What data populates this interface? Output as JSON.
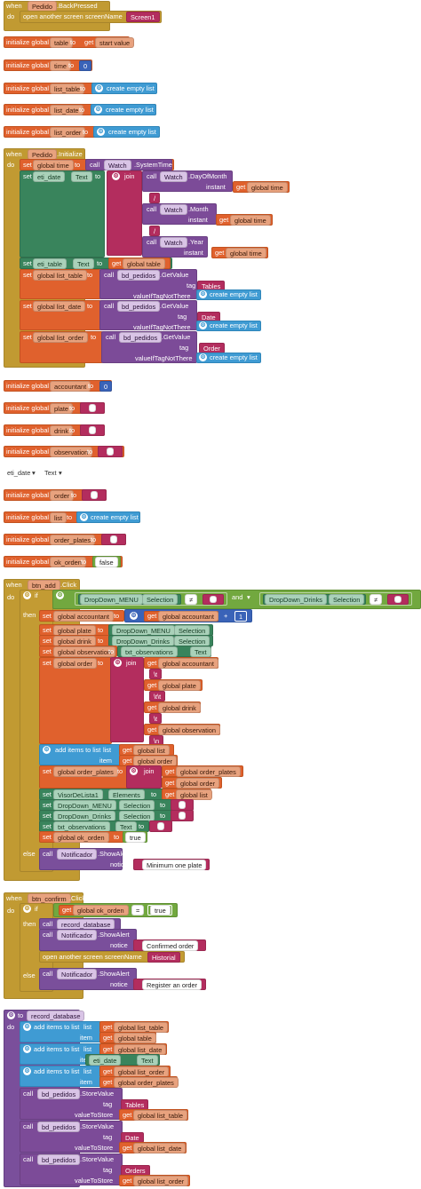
{
  "blocks": {
    "backpressed": {
      "when": "when",
      "component": "Pedido",
      "event": ".BackPressed",
      "do": "do",
      "action": "open another screen  screenName",
      "screen": "Screen1"
    },
    "init_table": {
      "label": "initialize global",
      "name": "table",
      "to": "to",
      "get": "get",
      "value": "start value"
    },
    "init_time": {
      "label": "initialize global",
      "name": "time",
      "to": "to",
      "value": "0"
    },
    "init_list_table": {
      "label": "initialize global",
      "name": "list_table",
      "to": "to",
      "value": "create empty list"
    },
    "init_list_date": {
      "label": "initialize global",
      "name": "list_date",
      "to": "to",
      "value": "create empty list"
    },
    "init_list_order": {
      "label": "initialize global",
      "name": "list_order",
      "to": "to",
      "value": "create empty list"
    },
    "initialize": {
      "when": "when",
      "component": "Pedido",
      "event": ".Initialize",
      "do": "do",
      "set": "set",
      "to": "to",
      "call": "call",
      "get": "get",
      "join": "join",
      "time_var": "global time",
      "watch": "Watch",
      "system_time": ".SystemTime",
      "eti_date": "eti_date",
      "text": "Text",
      "day": ".DayOfMonth",
      "month": ".Month",
      "year": ".Year",
      "instant": "instant",
      "slash": "/",
      "eti_table": "eti_table",
      "global_table": "global table",
      "list_table_var": "global list_table",
      "list_date_var": "global list_date",
      "list_order_var": "global list_order",
      "db": "bd_pedidos",
      "getvalue": ".GetValue",
      "tag": "tag",
      "if_not": "valueIfTagNotThere",
      "tag_tables": "Tables",
      "tag_date": "Date",
      "tag_order": "Order",
      "empty_list": "create empty list"
    },
    "init_accountant": {
      "label": "initialize global",
      "name": "accountant",
      "to": "to",
      "value": "0"
    },
    "init_plate": {
      "label": "initialize global",
      "name": "plate",
      "to": "to",
      "value": ""
    },
    "init_drink": {
      "label": "initialize global",
      "name": "drink",
      "to": "to",
      "value": ""
    },
    "init_observation": {
      "label": "initialize global",
      "name": "observation",
      "to": "to",
      "value": ""
    },
    "loose": {
      "component": "eti_date",
      "prop": "Text"
    },
    "init_order": {
      "label": "initialize global",
      "name": "order",
      "to": "to",
      "value": ""
    },
    "init_list": {
      "label": "initialize global",
      "name": "list",
      "to": "to",
      "value": "create empty list"
    },
    "init_order_plates": {
      "label": "initialize global",
      "name": "order_plates",
      "to": "to",
      "value": ""
    },
    "init_ok_orden": {
      "label": "initialize global",
      "name": "ok_orden",
      "to": "to",
      "value": "false"
    },
    "btn_add": {
      "when": "when",
      "component": "btn_add",
      "event": ".Click",
      "do": "do",
      "if": "if",
      "then": "then",
      "else": "else",
      "menu": "DropDown_MENU",
      "selection": "Selection",
      "neq": "≠",
      "and": "and",
      "drinks": "DropDown_Drinks",
      "empty": "",
      "set": "set",
      "to": "to",
      "get": "get",
      "join": "join",
      "plus": "+",
      "one": "1",
      "accountant": "global accountant",
      "plate": "global plate",
      "drink": "global drink",
      "observation": "global observation",
      "order": "global order",
      "txt_obs": "txt_observations",
      "text": "Text",
      "sep": "\\t",
      "sep2": "\\t\\t",
      "nl": "\\n",
      "add_items": "add items to list",
      "list_lbl": "list",
      "item_lbl": "item",
      "list_var": "global list",
      "order_plates": "global order_plates",
      "visor": "VisorDeLista1",
      "elements": "Elements",
      "ok_orden": "global ok_orden",
      "true": "true",
      "call": "call",
      "notif": "Notificador",
      "show": ".ShowAlert",
      "notice": "notice",
      "min": "Minimum one plate"
    },
    "btn_confirm": {
      "when": "when",
      "component": "btn_confirm",
      "event": ".Click",
      "do": "do",
      "if": "if",
      "then": "then",
      "else": "else",
      "get": "get",
      "ok": "global ok_orden",
      "eq": "=",
      "true": "true",
      "call": "call",
      "record": "record_database",
      "notif": "Notificador",
      "show": ".ShowAlert",
      "notice": "notice",
      "confirmed": "Confirmed order",
      "open": "open another screen  screenName",
      "historial": "Historial",
      "register": "Register an order"
    },
    "record": {
      "to": "to",
      "name": "record_database",
      "do": "do",
      "add_items": "add items to list",
      "list_lbl": "list",
      "item_lbl": "item",
      "get": "get",
      "list_table": "global list_table",
      "table": "global table",
      "list_date": "global list_date",
      "eti_date": "eti_date",
      "text": "Text",
      "list_order": "global list_order",
      "order_plates": "global order_plates",
      "call": "call",
      "db": "bd_pedidos",
      "store": ".StoreValue",
      "tag": "tag",
      "value_to_store": "valueToStore",
      "tables": "Tables",
      "date": "Date",
      "orders": "Orders"
    }
  },
  "colors": {
    "event": "#c19a32",
    "variable": "#e0612d",
    "component": "#7c4b98",
    "text": "#b32d5e",
    "list": "#3f9bd3",
    "logic": "#72a83f",
    "math": "#3a63b8",
    "property": "#39845c"
  }
}
